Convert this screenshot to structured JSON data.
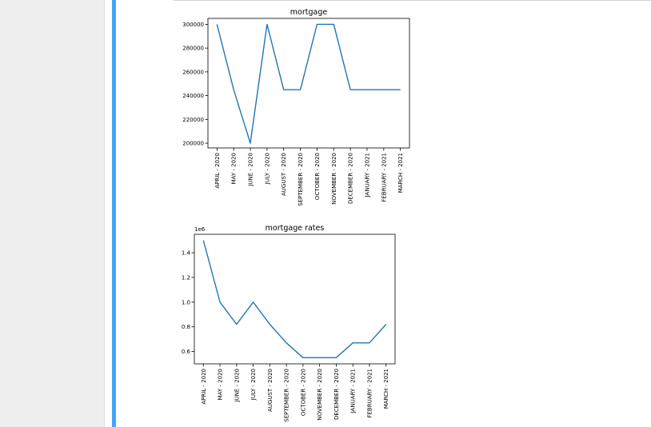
{
  "colors": {
    "series": "#1f77b4",
    "accent": "#42a5f5",
    "gutter": "#eeeeee"
  },
  "chart_data": [
    {
      "type": "line",
      "title": "mortgage",
      "xlabel": "",
      "ylabel": "",
      "x": [
        "APRIL - 2020",
        "MAY - 2020",
        "JUNE - 2020",
        "JULY - 2020",
        "AUGUST - 2020",
        "SEPTEMBER - 2020",
        "OCTOBER - 2020",
        "NOVEMBER - 2020",
        "DECEMBER - 2020",
        "JANUARY - 2021",
        "FEBRUARY - 2021",
        "MARCH - 2021"
      ],
      "series": [
        {
          "values": [
            300000,
            245000,
            200000,
            300000,
            245000,
            245000,
            300000,
            300000,
            245000,
            245000,
            245000,
            245000
          ]
        }
      ],
      "ylim": [
        196000,
        305000
      ],
      "yticks": [
        200000,
        220000,
        240000,
        260000,
        280000,
        300000
      ],
      "ytick_labels": [
        "200000",
        "220000",
        "240000",
        "260000",
        "280000",
        "300000"
      ],
      "offset_label": "",
      "grid": false,
      "legend": "none"
    },
    {
      "type": "line",
      "title": "mortgage rates",
      "xlabel": "",
      "ylabel": "",
      "x": [
        "APRIL - 2020",
        "MAY - 2020",
        "JUNE - 2020",
        "JULY - 2020",
        "AUGUST - 2020",
        "SEPTEMBER - 2020",
        "OCTOBER - 2020",
        "NOVEMBER - 2020",
        "DECEMBER - 2020",
        "JANUARY - 2021",
        "FEBRUARY - 2021",
        "MARCH - 2021"
      ],
      "series": [
        {
          "values": [
            1.5,
            1.0,
            0.82,
            1.0,
            0.82,
            0.67,
            0.55,
            0.55,
            0.55,
            0.67,
            0.67,
            0.82
          ]
        }
      ],
      "ylim": [
        0.5,
        1.55
      ],
      "yticks": [
        0.6,
        0.8,
        1.0,
        1.2,
        1.4
      ],
      "ytick_labels": [
        "0.6",
        "0.8",
        "1.0",
        "1.2",
        "1.4"
      ],
      "offset_label": "1e6",
      "grid": false,
      "legend": "none"
    }
  ]
}
